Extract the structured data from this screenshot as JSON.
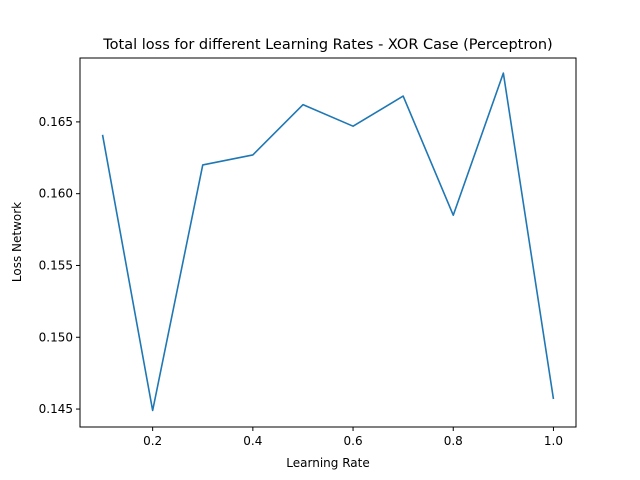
{
  "chart_data": {
    "type": "line",
    "title": "Total loss for different Learning Rates - XOR Case (Perceptron)",
    "xlabel": "Learning Rate",
    "ylabel": "Loss Network",
    "x": [
      0.1,
      0.2,
      0.3,
      0.4,
      0.5,
      0.6,
      0.7,
      0.8,
      0.9,
      1.0
    ],
    "series": [
      {
        "values": [
          0.1641,
          0.1449,
          0.162,
          0.1627,
          0.1662,
          0.1647,
          0.1668,
          0.1585,
          0.1684,
          0.1457
        ],
        "color": "#1f77b4"
      }
    ],
    "xlim": [
      0.055,
      1.045
    ],
    "ylim": [
      0.14375,
      0.16945
    ],
    "xticks": [
      0.2,
      0.4,
      0.6,
      0.8,
      1.0
    ],
    "xtick_labels": [
      "0.2",
      "0.4",
      "0.6",
      "0.8",
      "1.0"
    ],
    "yticks": [
      0.145,
      0.15,
      0.155,
      0.16,
      0.165
    ],
    "ytick_labels": [
      "0.145",
      "0.150",
      "0.155",
      "0.160",
      "0.165"
    ],
    "grid": false,
    "legend": "none"
  }
}
